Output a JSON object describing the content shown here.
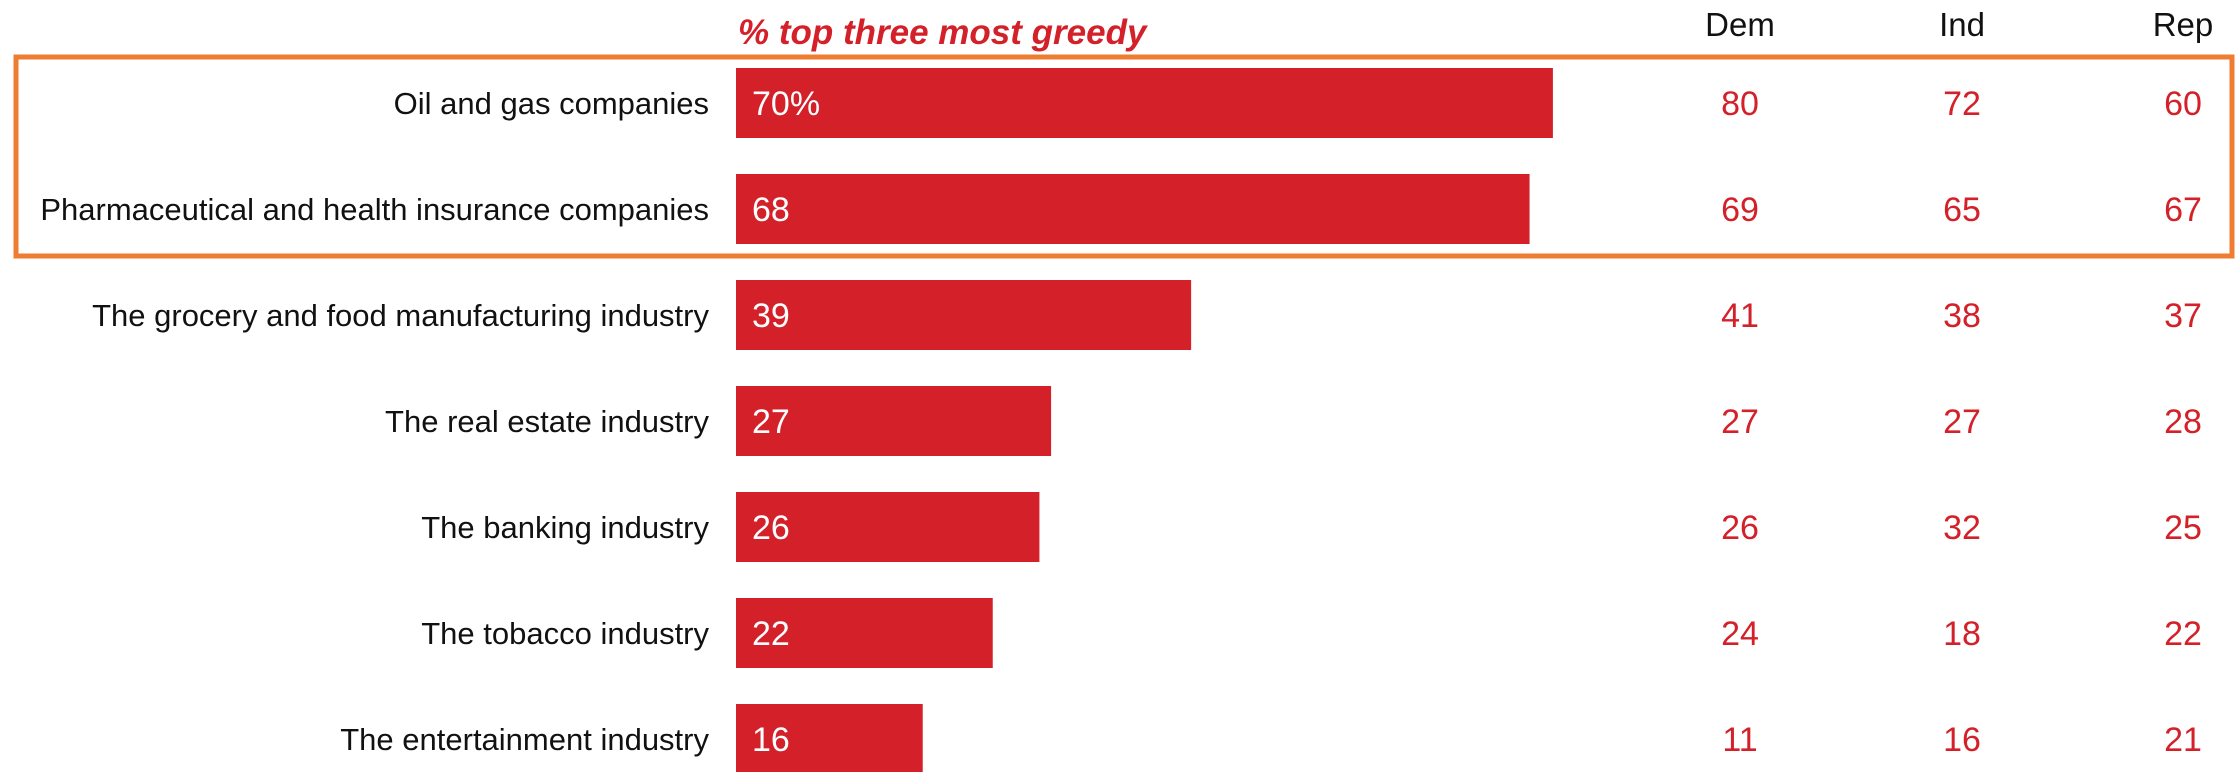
{
  "chart_data": {
    "type": "bar",
    "orientation": "horizontal",
    "title": "% top three most greedy",
    "categories": [
      "Oil and gas companies",
      "Pharmaceutical and health insurance companies",
      "The grocery and food manufacturing industry",
      "The real estate industry",
      "The banking industry",
      "The tobacco industry",
      "The entertainment industry"
    ],
    "values": [
      70,
      68,
      39,
      27,
      26,
      22,
      16
    ],
    "value_labels": [
      "70%",
      "68",
      "39",
      "27",
      "26",
      "22",
      "16"
    ],
    "xlim": [
      0,
      100
    ],
    "grid": false,
    "highlight_categories": [
      0,
      1
    ],
    "columns": [
      {
        "name": "Dem",
        "values": [
          80,
          69,
          41,
          27,
          26,
          24,
          11
        ]
      },
      {
        "name": "Ind",
        "values": [
          72,
          65,
          38,
          27,
          32,
          18,
          16
        ]
      },
      {
        "name": "Rep",
        "values": [
          60,
          67,
          37,
          28,
          25,
          22,
          21
        ]
      }
    ]
  },
  "colors": {
    "bar": "#d32029",
    "highlight_box": "#ee7d31",
    "title": "#d32029",
    "party_values": "#d32029"
  }
}
